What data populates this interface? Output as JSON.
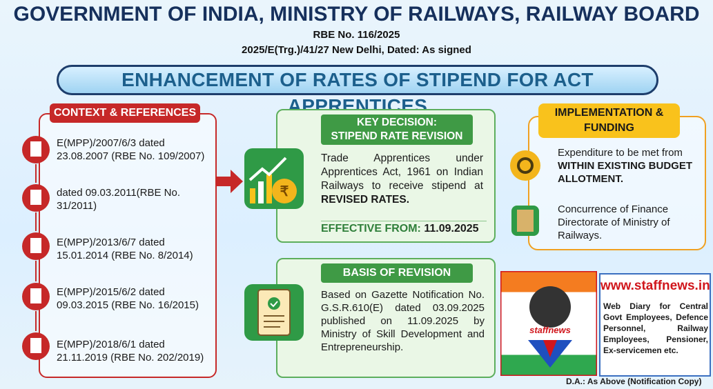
{
  "header": {
    "title": "GOVERNMENT OF INDIA, MINISTRY OF RAILWAYS, RAILWAY BOARD",
    "rbe": "RBE No. 116/2025",
    "reference": "2025/E(Trg.)/41/27 New Delhi, Dated: As signed"
  },
  "banner": "ENHANCEMENT OF RATES OF STIPEND FOR ACT APPRENTICES",
  "context": {
    "title": "CONTEXT & REFERENCES",
    "items": [
      "E(MPP)/2007/6/3 dated 23.08.2007 (RBE No. 109/2007)",
      "dated 09.03.2011(RBE No. 31/2011)",
      "E(MPP)/2013/6/7 dated 15.01.2014 (RBE No. 8/2014)",
      "E(MPP)/2015/6/2 dated 09.03.2015 (RBE No. 16/2015)",
      "E(MPP)/2018/6/1 dated 21.11.2019 (RBE No. 202/2019)"
    ]
  },
  "key_decision": {
    "title": [
      "KEY DECISION:",
      "STIPEND RATE REVISION"
    ],
    "icon_symbol": "₹",
    "body": "Trade Apprentices under Apprentices Act, 1961 on Indian Railways to receive stipend at",
    "body_bold": "REVISED RATES.",
    "effective_label": "EFFECTIVE FROM:",
    "effective_date": "11.09.2025"
  },
  "implementation": {
    "title": [
      "IMPLEMENTATION &",
      "FUNDING"
    ],
    "items": [
      {
        "text": "Expenditure to be met from",
        "bold": "WITHIN EXISTING BUDGET ALLOTMENT."
      },
      {
        "text": "Concurrence of Finance Directorate of Ministry of Railways."
      }
    ]
  },
  "basis": {
    "title": "BASIS OF REVISION",
    "body": "Based on Gazette Notification No. G.S.R.610(E) dated 03.09.2025 published on 11.09.2025 by Ministry of Skill Development and Entrepreneurship."
  },
  "logo": {
    "name": "staffnews",
    "url": "www.staffnews.in",
    "description": "Web Diary for Central Govt Employees, Defence Personnel, Railway Employees, Pensioner, Ex-servicemen etc."
  },
  "footer": "D.A.: As Above (Notification Copy)"
}
